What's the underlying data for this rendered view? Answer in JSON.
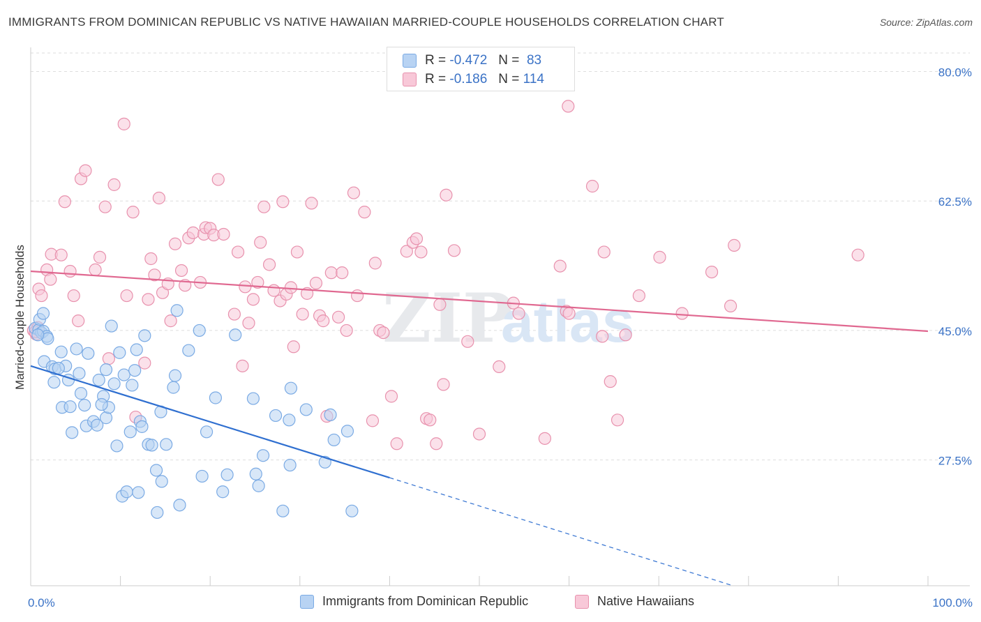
{
  "title": "IMMIGRANTS FROM DOMINICAN REPUBLIC VS NATIVE HAWAIIAN MARRIED-COUPLE HOUSEHOLDS CORRELATION CHART",
  "source": "Source: ZipAtlas.com",
  "watermark": {
    "zip": "ZIP",
    "atlas": "atlas"
  },
  "colors": {
    "blue_fill": "#b8d3f3",
    "blue_stroke": "#7aaae4",
    "blue_line": "#2f6fd0",
    "pink_fill": "#f8c8d8",
    "pink_stroke": "#e891ad",
    "pink_line": "#e06890",
    "axis_label": "#3a72c6",
    "grid": "#dedede"
  },
  "legend_top": {
    "rows": [
      {
        "r_label": "R =",
        "r_value": "-0.472",
        "n_label": "N =",
        "n_value": "83"
      },
      {
        "r_label": "R =",
        "r_value": "-0.186",
        "n_label": "N =",
        "n_value": "114"
      }
    ]
  },
  "legend_bottom": {
    "items": [
      "Immigrants from Dominican Republic",
      "Native Hawaiians"
    ]
  },
  "chart_data": {
    "type": "scatter",
    "xlabel": "",
    "ylabel": "Married-couple Households",
    "xlim": [
      0,
      100
    ],
    "ylim": [
      10.5,
      82.5
    ],
    "x_tick_labels": [
      {
        "value": 0,
        "label": "0.0%"
      },
      {
        "value": 100,
        "label": "100.0%"
      }
    ],
    "y_tick_labels": [
      {
        "value": 80.0,
        "label": "80.0%"
      },
      {
        "value": 62.5,
        "label": "62.5%"
      },
      {
        "value": 45.0,
        "label": "45.0%"
      },
      {
        "value": 27.5,
        "label": "27.5%"
      }
    ],
    "grid": true,
    "legend_position": "bottom",
    "series": [
      {
        "name": "Immigrants from Dominican Republic",
        "R": -0.472,
        "N": 83,
        "trend": {
          "solid": [
            [
              0,
              40.2
            ],
            [
              40,
              25.1
            ]
          ],
          "dashed": [
            [
              40,
              25.1
            ],
            [
              78,
              10.6
            ]
          ]
        },
        "points": [
          [
            0.5,
            45.3
          ],
          [
            0.9,
            45.1
          ],
          [
            1.2,
            44.7
          ],
          [
            1.4,
            44.9
          ],
          [
            1.0,
            46.5
          ],
          [
            1.8,
            44.2
          ],
          [
            1.9,
            43.9
          ],
          [
            1.4,
            47.3
          ],
          [
            1.5,
            40.8
          ],
          [
            2.4,
            40.1
          ],
          [
            2.6,
            38.0
          ],
          [
            2.7,
            39.8
          ],
          [
            3.4,
            42.1
          ],
          [
            3.5,
            34.6
          ],
          [
            3.9,
            40.2
          ],
          [
            4.2,
            38.3
          ],
          [
            4.4,
            34.7
          ],
          [
            4.6,
            31.2
          ],
          [
            5.1,
            42.5
          ],
          [
            5.6,
            36.5
          ],
          [
            5.4,
            39.2
          ],
          [
            6.0,
            34.9
          ],
          [
            6.2,
            32.1
          ],
          [
            6.4,
            41.9
          ],
          [
            7.0,
            32.7
          ],
          [
            7.4,
            32.2
          ],
          [
            7.6,
            38.3
          ],
          [
            8.1,
            36.1
          ],
          [
            8.4,
            33.2
          ],
          [
            8.4,
            39.7
          ],
          [
            8.7,
            34.6
          ],
          [
            9.0,
            45.6
          ],
          [
            9.3,
            37.8
          ],
          [
            9.6,
            29.4
          ],
          [
            9.9,
            42.0
          ],
          [
            10.2,
            22.6
          ],
          [
            10.4,
            39.0
          ],
          [
            10.7,
            23.2
          ],
          [
            11.1,
            31.3
          ],
          [
            11.3,
            37.6
          ],
          [
            11.6,
            39.6
          ],
          [
            11.8,
            42.4
          ],
          [
            12.0,
            23.1
          ],
          [
            12.2,
            32.7
          ],
          [
            12.4,
            32.0
          ],
          [
            12.7,
            44.3
          ],
          [
            13.1,
            29.6
          ],
          [
            13.5,
            29.5
          ],
          [
            14.0,
            26.1
          ],
          [
            14.1,
            20.4
          ],
          [
            14.5,
            34.0
          ],
          [
            14.6,
            24.6
          ],
          [
            15.1,
            29.6
          ],
          [
            15.9,
            37.3
          ],
          [
            16.3,
            47.7
          ],
          [
            16.6,
            21.4
          ],
          [
            17.6,
            42.3
          ],
          [
            18.8,
            45.0
          ],
          [
            19.1,
            25.3
          ],
          [
            19.6,
            31.3
          ],
          [
            20.6,
            35.9
          ],
          [
            21.4,
            23.2
          ],
          [
            21.9,
            25.5
          ],
          [
            22.8,
            44.4
          ],
          [
            24.8,
            35.8
          ],
          [
            25.1,
            25.6
          ],
          [
            25.4,
            24.0
          ],
          [
            25.9,
            28.1
          ],
          [
            27.3,
            33.5
          ],
          [
            28.1,
            20.6
          ],
          [
            28.8,
            32.9
          ],
          [
            28.9,
            26.8
          ],
          [
            29.0,
            37.2
          ],
          [
            30.7,
            34.3
          ],
          [
            32.8,
            27.2
          ],
          [
            33.4,
            33.6
          ],
          [
            33.8,
            30.2
          ],
          [
            35.3,
            31.4
          ],
          [
            35.8,
            20.6
          ],
          [
            16.1,
            38.9
          ],
          [
            3.1,
            39.9
          ],
          [
            7.9,
            35.0
          ],
          [
            0.8,
            44.4
          ]
        ]
      },
      {
        "name": "Native Hawaiians",
        "R": -0.186,
        "N": 114,
        "trend": {
          "solid": [
            [
              0,
              53.0
            ],
            [
              100,
              44.9
            ]
          ]
        },
        "points": [
          [
            0.3,
            45.0
          ],
          [
            0.6,
            44.5
          ],
          [
            0.8,
            45.4
          ],
          [
            0.9,
            50.6
          ],
          [
            1.2,
            49.7
          ],
          [
            1.8,
            53.2
          ],
          [
            2.2,
            51.9
          ],
          [
            2.3,
            55.3
          ],
          [
            3.4,
            55.2
          ],
          [
            3.8,
            62.4
          ],
          [
            4.4,
            53.0
          ],
          [
            4.8,
            49.7
          ],
          [
            5.3,
            46.3
          ],
          [
            5.6,
            65.5
          ],
          [
            6.1,
            66.6
          ],
          [
            7.2,
            53.2
          ],
          [
            7.7,
            54.9
          ],
          [
            8.3,
            61.7
          ],
          [
            8.7,
            41.2
          ],
          [
            9.3,
            64.7
          ],
          [
            10.4,
            72.9
          ],
          [
            10.7,
            49.7
          ],
          [
            11.4,
            61.0
          ],
          [
            11.7,
            33.3
          ],
          [
            12.7,
            40.6
          ],
          [
            13.1,
            49.2
          ],
          [
            13.4,
            54.7
          ],
          [
            13.8,
            52.5
          ],
          [
            14.3,
            62.9
          ],
          [
            14.7,
            50.1
          ],
          [
            15.3,
            51.3
          ],
          [
            15.6,
            46.3
          ],
          [
            16.1,
            56.7
          ],
          [
            16.8,
            53.1
          ],
          [
            17.2,
            51.1
          ],
          [
            17.6,
            57.5
          ],
          [
            18.1,
            58.2
          ],
          [
            18.9,
            51.5
          ],
          [
            19.3,
            58.0
          ],
          [
            19.5,
            58.9
          ],
          [
            20.0,
            58.8
          ],
          [
            20.4,
            57.9
          ],
          [
            20.9,
            65.4
          ],
          [
            21.5,
            58.0
          ],
          [
            22.7,
            47.2
          ],
          [
            23.1,
            55.6
          ],
          [
            23.6,
            40.2
          ],
          [
            23.9,
            50.9
          ],
          [
            24.3,
            46.0
          ],
          [
            24.8,
            49.2
          ],
          [
            25.3,
            51.5
          ],
          [
            25.6,
            56.9
          ],
          [
            26.0,
            61.7
          ],
          [
            26.6,
            53.9
          ],
          [
            27.1,
            50.4
          ],
          [
            27.8,
            49.0
          ],
          [
            28.1,
            62.4
          ],
          [
            28.5,
            49.9
          ],
          [
            29.0,
            50.8
          ],
          [
            29.3,
            42.8
          ],
          [
            29.7,
            55.6
          ],
          [
            30.3,
            47.2
          ],
          [
            30.8,
            50.0
          ],
          [
            31.3,
            62.2
          ],
          [
            31.8,
            51.4
          ],
          [
            32.2,
            47.0
          ],
          [
            32.6,
            46.3
          ],
          [
            33.0,
            33.4
          ],
          [
            33.5,
            52.8
          ],
          [
            34.3,
            46.8
          ],
          [
            34.7,
            52.8
          ],
          [
            35.2,
            45.0
          ],
          [
            36.0,
            63.6
          ],
          [
            36.4,
            49.7
          ],
          [
            37.2,
            61.0
          ],
          [
            38.1,
            32.8
          ],
          [
            38.4,
            54.1
          ],
          [
            38.9,
            45.0
          ],
          [
            39.3,
            44.7
          ],
          [
            40.2,
            36.1
          ],
          [
            40.8,
            29.7
          ],
          [
            41.9,
            55.7
          ],
          [
            42.6,
            56.9
          ],
          [
            43.0,
            57.4
          ],
          [
            43.5,
            55.6
          ],
          [
            44.1,
            33.1
          ],
          [
            44.5,
            32.9
          ],
          [
            45.2,
            29.7
          ],
          [
            45.6,
            48.5
          ],
          [
            46.0,
            37.7
          ],
          [
            46.3,
            63.3
          ],
          [
            47.2,
            55.8
          ],
          [
            48.7,
            43.5
          ],
          [
            50.0,
            31.0
          ],
          [
            52.2,
            40.1
          ],
          [
            53.8,
            48.7
          ],
          [
            54.4,
            47.3
          ],
          [
            57.3,
            30.4
          ],
          [
            59.0,
            53.7
          ],
          [
            59.7,
            47.6
          ],
          [
            60.0,
            47.3
          ],
          [
            59.9,
            75.3
          ],
          [
            62.6,
            64.5
          ],
          [
            63.7,
            44.2
          ],
          [
            63.9,
            55.6
          ],
          [
            64.6,
            38.1
          ],
          [
            65.4,
            32.9
          ],
          [
            66.3,
            44.4
          ],
          [
            67.8,
            49.7
          ],
          [
            70.1,
            54.9
          ],
          [
            72.6,
            47.3
          ],
          [
            75.9,
            52.9
          ],
          [
            78.0,
            48.3
          ],
          [
            78.4,
            56.5
          ],
          [
            92.2,
            55.2
          ],
          [
            0.5,
            44.8
          ]
        ]
      }
    ]
  }
}
